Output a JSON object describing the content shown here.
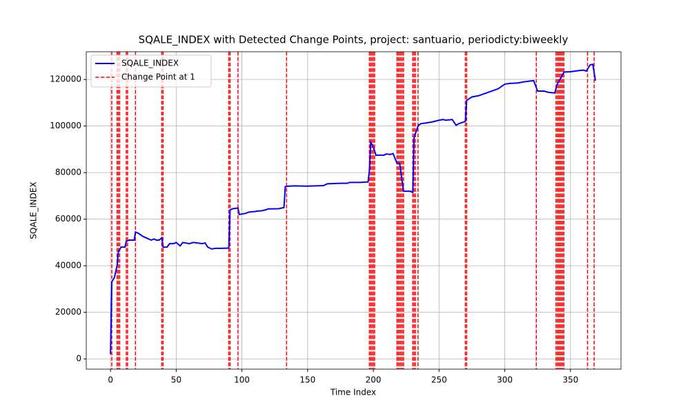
{
  "chart_data": {
    "type": "line",
    "title": "SQALE_INDEX with Detected Change Points, project: santuario, periodicty:biweekly",
    "x_label": "Time Index",
    "y_label": "SQALE_INDEX",
    "x": [
      0,
      1,
      3,
      5,
      6,
      7,
      8,
      11,
      12,
      14,
      18,
      19,
      21,
      25,
      29,
      31,
      33,
      35,
      37,
      39,
      40,
      43,
      45,
      48,
      50,
      53,
      55,
      60,
      63,
      66,
      70,
      72,
      74,
      77,
      80,
      85,
      90,
      91,
      93,
      97,
      98,
      103,
      105,
      110,
      112,
      115,
      118,
      120,
      128,
      132,
      133,
      136,
      140,
      150,
      162,
      165,
      175,
      180,
      182,
      190,
      196,
      197,
      198,
      200,
      202,
      208,
      210,
      213,
      215,
      218,
      220,
      223,
      228,
      230,
      231,
      234,
      236,
      240,
      245,
      250,
      253,
      255,
      260,
      263,
      265,
      270,
      271,
      275,
      280,
      285,
      290,
      295,
      300,
      304,
      310,
      315,
      322,
      325,
      330,
      333,
      338,
      340,
      343,
      345,
      350,
      356,
      360,
      362,
      365,
      367,
      369
    ],
    "series": [
      {
        "name": "SQALE_INDEX",
        "color": "#0000ff",
        "values": [
          2000,
          33000,
          35000,
          40000,
          46000,
          47000,
          48000,
          48000,
          50500,
          51000,
          51000,
          54500,
          54000,
          52500,
          51500,
          51000,
          51500,
          51000,
          51000,
          52000,
          48000,
          48000,
          49500,
          49500,
          50000,
          48500,
          50000,
          49500,
          50000,
          49800,
          49500,
          49800,
          48000,
          47200,
          47500,
          47500,
          47600,
          64000,
          64500,
          64800,
          62000,
          62500,
          63000,
          63300,
          63500,
          63600,
          64000,
          64400,
          64500,
          65000,
          74000,
          74200,
          74300,
          74200,
          74400,
          75200,
          75400,
          75400,
          75800,
          75800,
          76000,
          81000,
          93000,
          91000,
          87500,
          87500,
          88000,
          87800,
          88200,
          84000,
          84000,
          72000,
          72000,
          71500,
          95000,
          100000,
          101000,
          101300,
          101800,
          102500,
          102800,
          102500,
          102800,
          100300,
          101000,
          102000,
          111000,
          112500,
          113000,
          114000,
          115000,
          116000,
          118000,
          118300,
          118500,
          119000,
          119500,
          115000,
          115000,
          114500,
          114200,
          118000,
          121000,
          123200,
          123300,
          123800,
          124000,
          123600,
          126300,
          126500,
          119500
        ]
      }
    ],
    "change_points": {
      "name": "Change Point at 1",
      "color": "#ff0000",
      "x": [
        1,
        5,
        6,
        7,
        12,
        13,
        19,
        39,
        40,
        90,
        91,
        97,
        134,
        197,
        198,
        199,
        200,
        201,
        218,
        219,
        220,
        221,
        222,
        223,
        230,
        231,
        232,
        234,
        270,
        271,
        324,
        339,
        340,
        341,
        342,
        343,
        344,
        345,
        363,
        368
      ]
    },
    "xlim": [
      -18.45,
      388.45
    ],
    "ylim": [
      -4400,
      131900
    ],
    "xticks": [
      0,
      50,
      100,
      150,
      200,
      250,
      300,
      350
    ],
    "yticks": [
      0,
      20000,
      40000,
      60000,
      80000,
      100000,
      120000
    ],
    "grid": true,
    "legend": "upper left"
  }
}
